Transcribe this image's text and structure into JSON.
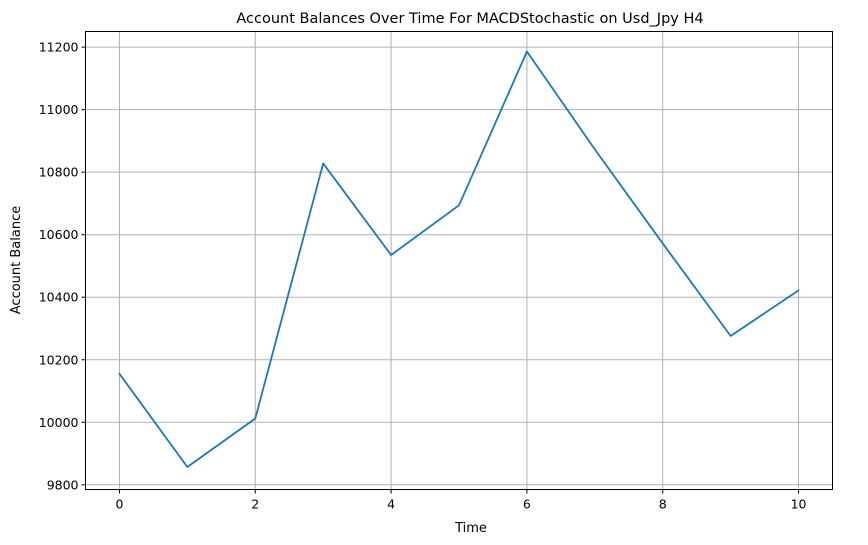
{
  "chart_data": {
    "type": "line",
    "title": "Account Balances Over Time For MACDStochastic on Usd_Jpy H4",
    "xlabel": "Time",
    "ylabel": "Account Balance",
    "x": [
      0,
      1,
      2,
      3,
      4,
      5,
      6,
      7,
      8,
      9,
      10
    ],
    "series": [
      {
        "values": [
          10155,
          9857,
          10012,
          10828,
          10535,
          10694,
          11186,
          10873,
          10572,
          10276,
          10422
        ],
        "color": "#1f77b4"
      }
    ],
    "xlim": [
      -0.5,
      10.5
    ],
    "ylim": [
      9785,
      11250
    ],
    "x_ticks": [
      0,
      2,
      4,
      6,
      8,
      10
    ],
    "y_ticks": [
      9800,
      10000,
      10200,
      10400,
      10600,
      10800,
      11000,
      11200
    ],
    "grid": true,
    "legend": "none"
  }
}
